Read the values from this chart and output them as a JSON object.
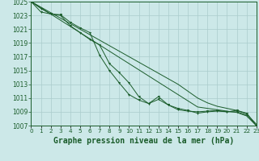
{
  "title": "Graphe pression niveau de la mer (hPa)",
  "x_hours": [
    0,
    1,
    2,
    3,
    4,
    5,
    6,
    7,
    8,
    9,
    10,
    11,
    12,
    13,
    14,
    15,
    16,
    17,
    18,
    19,
    20,
    21,
    22,
    23
  ],
  "line_straight1": [
    1025,
    1024.1,
    1023.2,
    1022.3,
    1021.4,
    1020.5,
    1019.6,
    1018.7,
    1017.8,
    1016.9,
    1016.0,
    1015.1,
    1014.2,
    1013.3,
    1012.4,
    1011.5,
    1010.6,
    1009.7,
    1009.5,
    1009.3,
    1009.1,
    1008.9,
    1008.4,
    1007.0
  ],
  "line_straight2": [
    1025,
    1024.2,
    1023.4,
    1022.6,
    1021.8,
    1021.0,
    1020.2,
    1019.4,
    1018.6,
    1017.8,
    1017.0,
    1016.2,
    1015.4,
    1014.6,
    1013.8,
    1013.0,
    1012.0,
    1011.0,
    1010.3,
    1009.8,
    1009.5,
    1009.2,
    1008.7,
    1007.2
  ],
  "line_marker1": [
    1025,
    1023.5,
    1023.2,
    1023.0,
    1021.5,
    1020.5,
    1019.5,
    1018.7,
    1016.0,
    1014.7,
    1013.2,
    1011.2,
    1010.2,
    1010.8,
    1010.0,
    1009.3,
    1009.1,
    1009.0,
    1009.1,
    1009.2,
    1009.0,
    1009.2,
    1008.8,
    1007.0
  ],
  "line_marker2": [
    1025,
    1024.0,
    1023.2,
    1023.1,
    1022.0,
    1021.2,
    1020.5,
    1017.2,
    1015.0,
    1013.2,
    1011.5,
    1010.7,
    1010.2,
    1011.2,
    1010.0,
    1009.5,
    1009.2,
    1008.8,
    1009.0,
    1009.1,
    1009.0,
    1009.0,
    1008.5,
    1007.0
  ],
  "ylim_min": 1007,
  "ylim_max": 1025,
  "yticks": [
    1007,
    1009,
    1011,
    1013,
    1015,
    1017,
    1019,
    1021,
    1023,
    1025
  ],
  "bg_color": "#cce8e8",
  "grid_color": "#aacccc",
  "line_color": "#1a5c2a",
  "title_color": "#1a5c2a",
  "title_fontsize": 7.0,
  "tick_fontsize": 5.5
}
